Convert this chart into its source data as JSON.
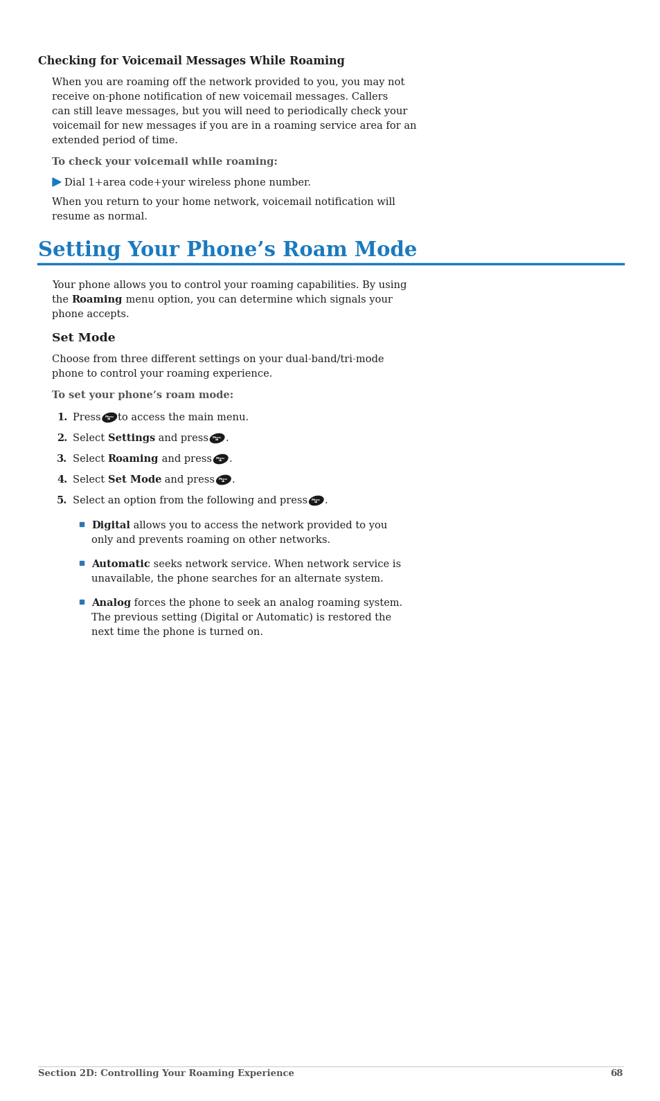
{
  "bg_color": "#ffffff",
  "text_color": "#231f20",
  "blue_color": "#1a7abf",
  "dark_color": "#231f20",
  "gray_label_color": "#555555",
  "bullet_blue": "#2e75b6",
  "footer_color": "#555555",
  "section1_title": "Checking for Voicemail Messages While Roaming",
  "section2_title": "Setting Your Phone’s Roam Mode",
  "section2_sub": "Set Mode",
  "footer": "Section 2D: Controlling Your Roaming Experience",
  "page_num": "68"
}
